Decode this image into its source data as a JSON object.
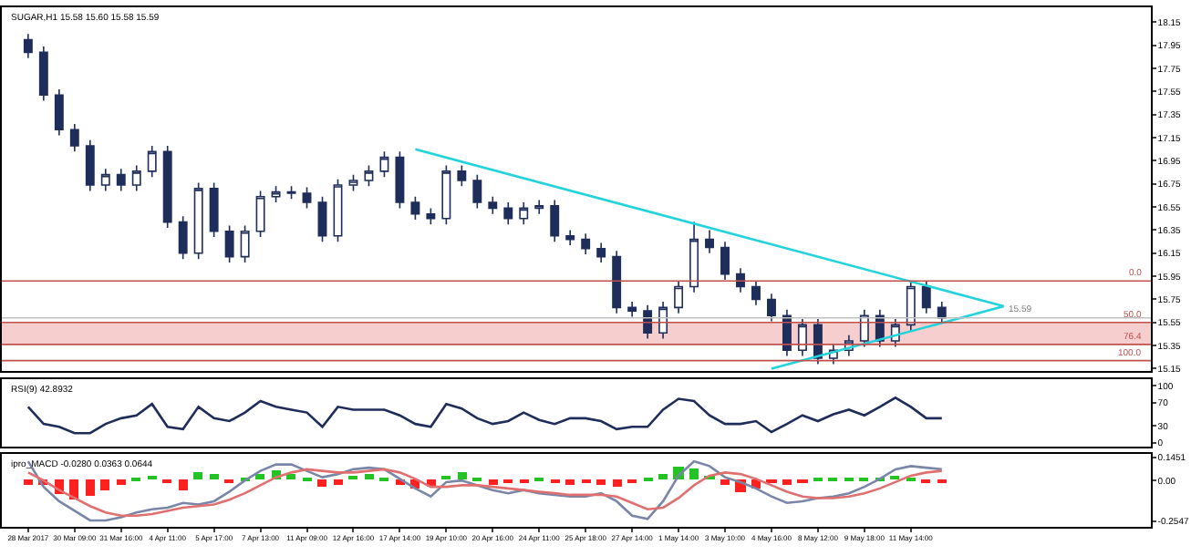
{
  "chart_data": [
    {
      "type": "candlestick",
      "title": "SUGAR,H1 15.58 15.60 15.58 15.59",
      "color": "#1f2d5a",
      "ohlc": [
        [
          18.0,
          18.05,
          17.84,
          17.89
        ],
        [
          17.89,
          17.94,
          17.47,
          17.52
        ],
        [
          17.52,
          17.57,
          17.17,
          17.22
        ],
        [
          17.22,
          17.27,
          17.03,
          17.08
        ],
        [
          17.08,
          17.13,
          16.69,
          16.74
        ],
        [
          16.74,
          16.88,
          16.69,
          16.83
        ],
        [
          16.83,
          16.88,
          16.69,
          16.74
        ],
        [
          16.74,
          16.91,
          16.69,
          16.86
        ],
        [
          16.86,
          17.08,
          16.81,
          17.03
        ],
        [
          17.03,
          17.08,
          16.37,
          16.42
        ],
        [
          16.42,
          16.47,
          16.1,
          16.15
        ],
        [
          16.15,
          16.76,
          16.1,
          16.71
        ],
        [
          16.71,
          16.76,
          16.29,
          16.34
        ],
        [
          16.34,
          16.39,
          16.07,
          16.12
        ],
        [
          16.12,
          16.39,
          16.07,
          16.34
        ],
        [
          16.34,
          16.69,
          16.29,
          16.64
        ],
        [
          16.64,
          16.73,
          16.59,
          16.68
        ],
        [
          16.68,
          16.73,
          16.62,
          16.67
        ],
        [
          16.67,
          16.72,
          16.54,
          16.59
        ],
        [
          16.59,
          16.64,
          16.25,
          16.3
        ],
        [
          16.3,
          16.79,
          16.25,
          16.74
        ],
        [
          16.74,
          16.83,
          16.69,
          16.78
        ],
        [
          16.78,
          16.91,
          16.73,
          16.86
        ],
        [
          16.86,
          17.03,
          16.81,
          16.98
        ],
        [
          16.98,
          17.03,
          16.54,
          16.59
        ],
        [
          16.59,
          16.64,
          16.44,
          16.49
        ],
        [
          16.49,
          16.54,
          16.4,
          16.45
        ],
        [
          16.45,
          16.91,
          16.4,
          16.86
        ],
        [
          16.86,
          16.91,
          16.73,
          16.78
        ],
        [
          16.78,
          16.83,
          16.54,
          16.59
        ],
        [
          16.59,
          16.64,
          16.49,
          16.54
        ],
        [
          16.54,
          16.59,
          16.4,
          16.45
        ],
        [
          16.45,
          16.59,
          16.4,
          16.54
        ],
        [
          16.54,
          16.61,
          16.49,
          16.56
        ],
        [
          16.56,
          16.61,
          16.25,
          16.3
        ],
        [
          16.3,
          16.35,
          16.22,
          16.27
        ],
        [
          16.27,
          16.32,
          16.14,
          16.19
        ],
        [
          16.19,
          16.24,
          16.07,
          16.12
        ],
        [
          16.12,
          16.17,
          15.63,
          15.68
        ],
        [
          15.68,
          15.73,
          15.6,
          15.65
        ],
        [
          15.65,
          15.7,
          15.41,
          15.46
        ],
        [
          15.46,
          15.73,
          15.41,
          15.68
        ],
        [
          15.68,
          15.91,
          15.63,
          15.86
        ],
        [
          15.86,
          16.42,
          15.81,
          16.27
        ],
        [
          16.27,
          16.35,
          16.15,
          16.2
        ],
        [
          16.2,
          16.25,
          15.92,
          15.97
        ],
        [
          15.97,
          16.02,
          15.81,
          15.86
        ],
        [
          15.86,
          15.91,
          15.7,
          15.75
        ],
        [
          15.75,
          15.8,
          15.56,
          15.61
        ],
        [
          15.61,
          15.66,
          15.26,
          15.31
        ],
        [
          15.31,
          15.58,
          15.26,
          15.53
        ],
        [
          15.53,
          15.58,
          15.19,
          15.24
        ],
        [
          15.24,
          15.36,
          15.19,
          15.31
        ],
        [
          15.31,
          15.44,
          15.26,
          15.39
        ],
        [
          15.39,
          15.66,
          15.34,
          15.61
        ],
        [
          15.61,
          15.66,
          15.34,
          15.39
        ],
        [
          15.39,
          15.58,
          15.34,
          15.53
        ],
        [
          15.53,
          15.91,
          15.48,
          15.86
        ],
        [
          15.86,
          15.91,
          15.63,
          15.68
        ],
        [
          15.68,
          15.73,
          15.54,
          15.59
        ],
        null,
        null,
        null,
        null,
        null,
        null,
        null,
        null,
        null,
        null,
        null,
        null,
        null
      ],
      "series": [
        {
          "type": "line",
          "color": "#22d3dc",
          "values": [
            null,
            null,
            null,
            null,
            null,
            null,
            null,
            null,
            null,
            null,
            null,
            null,
            null,
            null,
            null,
            null,
            null,
            null,
            null,
            null,
            null,
            null,
            null,
            null,
            null,
            17.05,
            null,
            null,
            null,
            null,
            null,
            null,
            null,
            null,
            null,
            null,
            null,
            null,
            null,
            null,
            null,
            null,
            null,
            null,
            null,
            null,
            null,
            null,
            null,
            null,
            null,
            null,
            null,
            null,
            null,
            null,
            null,
            null,
            null,
            null,
            null,
            null,
            null,
            15.69,
            null,
            null,
            null,
            null,
            null,
            null,
            null,
            null,
            null
          ]
        },
        {
          "type": "line",
          "color": "#22d3dc",
          "values": [
            null,
            null,
            null,
            null,
            null,
            null,
            null,
            null,
            null,
            null,
            null,
            null,
            null,
            null,
            null,
            null,
            null,
            null,
            null,
            null,
            null,
            null,
            null,
            null,
            null,
            null,
            null,
            null,
            null,
            null,
            null,
            null,
            null,
            null,
            null,
            null,
            null,
            null,
            null,
            null,
            null,
            null,
            null,
            null,
            null,
            null,
            null,
            null,
            15.15,
            null,
            null,
            null,
            null,
            null,
            null,
            null,
            null,
            null,
            null,
            null,
            null,
            null,
            null,
            15.69,
            null,
            null,
            null,
            null,
            null,
            null,
            null,
            null,
            null
          ]
        }
      ],
      "ref_lines": [
        {
          "axis": "y",
          "value": 15.91,
          "color": "#c0504d"
        },
        {
          "axis": "y",
          "value": 15.55,
          "color": "#c0504d"
        },
        {
          "axis": "y",
          "value": 15.36,
          "color": "#c0504d"
        },
        {
          "axis": "y",
          "value": 15.22,
          "color": "#c0504d"
        },
        {
          "axis": "y",
          "value": 15.59,
          "label": "15.59",
          "color": "#c0c0c0"
        }
      ],
      "annotations": [
        {
          "text": "0.0",
          "y": 15.91
        },
        {
          "text": "50.0",
          "y": 15.55
        },
        {
          "text": "76.4",
          "y": 15.36
        },
        {
          "text": "100.0",
          "y": 15.22
        }
      ],
      "bands": [
        {
          "axis": "y",
          "from": 15.36,
          "to": 15.55,
          "color": "#f4c2c2"
        }
      ],
      "ylim": [
        15.13,
        18.28
      ],
      "yticks": [
        18.15,
        17.95,
        17.75,
        17.55,
        17.35,
        17.15,
        16.95,
        16.75,
        16.55,
        16.35,
        16.15,
        15.95,
        15.75,
        15.55,
        15.35,
        15.15
      ],
      "tick_labels": "y",
      "grid": false
    },
    {
      "type": "line",
      "title": "RSI(9) 42.8932",
      "series": [
        {
          "color": "#1f2d5a",
          "values": [
            63,
            33,
            28,
            17,
            17,
            33,
            43,
            48,
            68,
            28,
            24,
            63,
            43,
            38,
            53,
            73,
            63,
            58,
            53,
            28,
            63,
            58,
            58,
            58,
            48,
            33,
            28,
            68,
            60,
            43,
            33,
            38,
            53,
            40,
            33,
            43,
            43,
            38,
            24,
            28,
            28,
            58,
            77,
            73,
            48,
            33,
            33,
            38,
            19,
            33,
            48,
            38,
            50,
            58,
            48,
            63,
            79,
            63,
            43,
            43,
            null,
            null,
            null,
            null,
            null,
            null,
            null,
            null,
            null,
            null,
            null,
            null,
            null
          ]
        }
      ],
      "ylim": [
        -6,
        112
      ],
      "yticks": [
        0,
        30,
        70,
        100
      ],
      "tick_labels": "y",
      "grid": false
    },
    {
      "type": "bar",
      "title": "ipro_MACD -0.0280 0.0363 0.0644",
      "categories": [
        "28 Mar 2017",
        null,
        null,
        "30 Mar 09:00",
        null,
        null,
        "31 Mar 16:00",
        null,
        null,
        "4 Apr 11:00",
        null,
        null,
        "5 Apr 17:00",
        null,
        null,
        "7 Apr 13:00",
        null,
        null,
        "11 Apr 09:00",
        null,
        null,
        "12 Apr 16:00",
        null,
        null,
        "17 Apr 14:00",
        null,
        null,
        "19 Apr 10:00",
        null,
        null,
        "20 Apr 16:00",
        null,
        null,
        "24 Apr 11:00",
        null,
        null,
        "25 Apr 18:00",
        null,
        null,
        "27 Apr 14:00",
        null,
        null,
        "1 May 14:00",
        null,
        null,
        "3 May 10:00",
        null,
        null,
        "4 May 16:00",
        null,
        null,
        "8 May 12:00",
        null,
        null,
        "9 May 18:00",
        null,
        null,
        "11 May 14:00",
        null,
        null,
        null,
        null,
        null,
        null,
        null,
        null,
        null,
        null,
        null,
        null,
        null,
        null,
        null
      ],
      "series": [
        {
          "type": "bar",
          "values": [
            -0.03,
            -0.03,
            -0.09,
            -0.12,
            -0.1,
            -0.06,
            -0.03,
            0.02,
            0.03,
            -0.02,
            -0.06,
            0.05,
            0.04,
            -0.02,
            0.02,
            0.04,
            0.06,
            0.04,
            0.01,
            -0.04,
            -0.03,
            0.03,
            0.04,
            0.02,
            -0.03,
            -0.05,
            -0.04,
            0.03,
            0.05,
            0.01,
            -0.03,
            -0.02,
            -0.01,
            0.01,
            -0.02,
            -0.03,
            -0.02,
            -0.03,
            -0.04,
            -0.02,
            0.01,
            0.04,
            0.08,
            0.07,
            0.03,
            -0.03,
            -0.07,
            -0.05,
            -0.02,
            -0.03,
            -0.02,
            0.01,
            0.02,
            0.02,
            0.01,
            0.02,
            0.03,
            0.02,
            -0.01,
            -0.02,
            null,
            null,
            null,
            null,
            null,
            null,
            null,
            null,
            null,
            null,
            null,
            null,
            null
          ],
          "colors": [
            "#ff2020",
            "#ff2020",
            "#ff2020",
            "#ff2020",
            "#ff2020",
            "#ff2020",
            "#ff2020",
            "#22c322",
            "#22c322",
            "#ff2020",
            "#ff2020",
            "#22c322",
            "#22c322",
            "#ff2020",
            "#22c322",
            "#22c322",
            "#22c322",
            "#22c322",
            "#22c322",
            "#ff2020",
            "#ff2020",
            "#22c322",
            "#22c322",
            "#22c322",
            "#ff2020",
            "#ff2020",
            "#ff2020",
            "#22c322",
            "#22c322",
            "#22c322",
            "#ff2020",
            "#ff2020",
            "#ff2020",
            "#22c322",
            "#ff2020",
            "#ff2020",
            "#ff2020",
            "#ff2020",
            "#ff2020",
            "#ff2020",
            "#22c322",
            "#22c322",
            "#22c322",
            "#22c322",
            "#22c322",
            "#ff2020",
            "#ff2020",
            "#ff2020",
            "#ff2020",
            "#ff2020",
            "#ff2020",
            "#22c322",
            "#22c322",
            "#22c322",
            "#22c322",
            "#22c322",
            "#22c322",
            "#22c322",
            "#ff2020",
            "#ff2020",
            null,
            null,
            null,
            null,
            null,
            null,
            null,
            null,
            null,
            null,
            null,
            null,
            null
          ]
        },
        {
          "type": "line",
          "color": "#7a86a8",
          "values": [
            0.12,
            -0.04,
            -0.13,
            -0.19,
            -0.25,
            -0.25,
            -0.23,
            -0.2,
            -0.18,
            -0.17,
            -0.14,
            -0.15,
            -0.13,
            -0.07,
            0.0,
            0.06,
            0.1,
            0.1,
            0.06,
            0.02,
            0.04,
            0.07,
            0.08,
            0.07,
            0.01,
            -0.05,
            -0.1,
            -0.01,
            0.0,
            -0.03,
            -0.06,
            -0.08,
            -0.06,
            -0.08,
            -0.09,
            -0.1,
            -0.1,
            -0.08,
            -0.13,
            -0.22,
            -0.24,
            -0.13,
            0.03,
            0.12,
            0.09,
            0.02,
            -0.01,
            -0.05,
            -0.1,
            -0.14,
            -0.13,
            -0.11,
            -0.1,
            -0.08,
            -0.04,
            0.01,
            0.07,
            0.09,
            0.08,
            0.07,
            null,
            null,
            null,
            null,
            null,
            null,
            null,
            null,
            null,
            null,
            null,
            null,
            null
          ]
        },
        {
          "type": "line",
          "color": "#e07070",
          "values": [
            0.05,
            0.0,
            -0.06,
            -0.11,
            -0.16,
            -0.2,
            -0.22,
            -0.22,
            -0.21,
            -0.19,
            -0.17,
            -0.16,
            -0.15,
            -0.12,
            -0.08,
            -0.03,
            0.02,
            0.05,
            0.07,
            0.06,
            0.05,
            0.05,
            0.06,
            0.07,
            0.05,
            0.01,
            -0.04,
            -0.04,
            -0.03,
            -0.03,
            -0.04,
            -0.05,
            -0.06,
            -0.07,
            -0.08,
            -0.09,
            -0.09,
            -0.09,
            -0.1,
            -0.14,
            -0.18,
            -0.17,
            -0.11,
            -0.03,
            0.03,
            0.05,
            0.04,
            0.01,
            -0.03,
            -0.07,
            -0.1,
            -0.11,
            -0.11,
            -0.1,
            -0.08,
            -0.05,
            -0.01,
            0.03,
            0.05,
            0.06,
            null,
            null,
            null,
            null,
            null,
            null,
            null,
            null,
            null,
            null,
            null,
            null,
            null
          ]
        }
      ],
      "ylim": [
        -0.29,
        0.165
      ],
      "yticks": [
        0.1451,
        {
          "value": 0,
          "label": "0.00"
        },
        -0.2547
      ],
      "grid": false
    }
  ]
}
